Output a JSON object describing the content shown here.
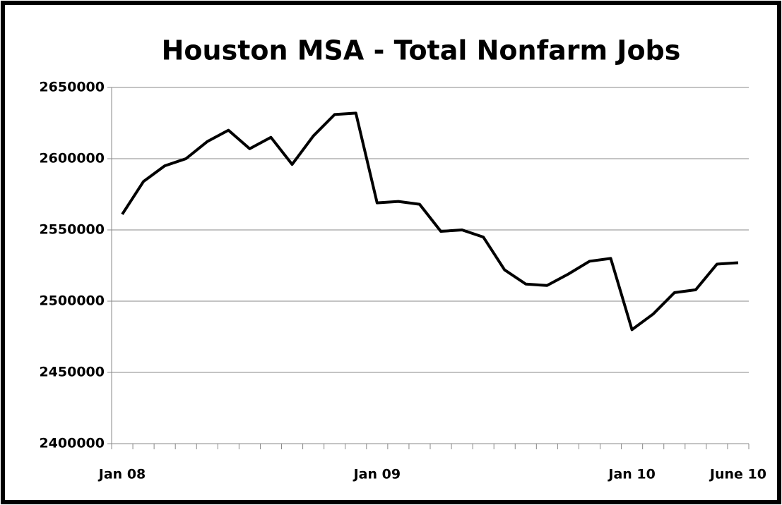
{
  "chart_data": {
    "type": "line",
    "title": "Houston MSA - Total Nonfarm Jobs",
    "categories": [
      "Jan 08",
      null,
      null,
      null,
      null,
      null,
      null,
      null,
      null,
      null,
      null,
      null,
      "Jan 09",
      null,
      null,
      null,
      null,
      null,
      null,
      null,
      null,
      null,
      null,
      null,
      "Jan 10",
      null,
      null,
      null,
      null,
      "June 10"
    ],
    "series": [
      {
        "color": "#000000",
        "values": [
          2561000,
          2584000,
          2595000,
          2600000,
          2612000,
          2620000,
          2607000,
          2615000,
          2596000,
          2616000,
          2631000,
          2632000,
          2569000,
          2570000,
          2568000,
          2549000,
          2550000,
          2545000,
          2522000,
          2512000,
          2511000,
          2519000,
          2528000,
          2530000,
          2480000,
          2491000,
          2506000,
          2508000,
          2526000,
          2527000
        ]
      }
    ],
    "ylim": [
      2400000,
      2650000
    ],
    "yticks": [
      2400000,
      2450000,
      2500000,
      2550000,
      2600000,
      2650000
    ],
    "grid": true
  }
}
